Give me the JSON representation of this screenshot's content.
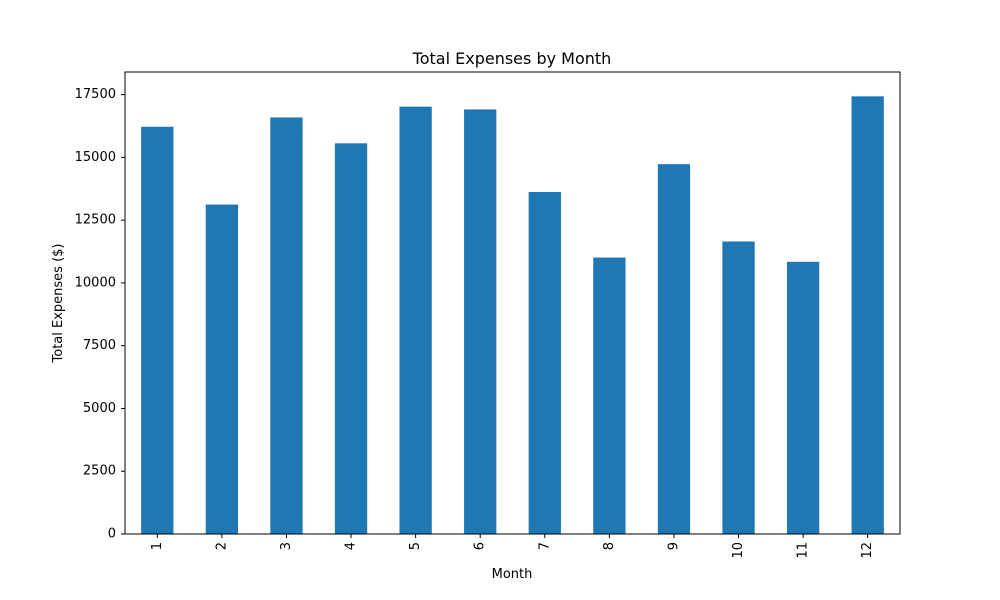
{
  "chart_data": {
    "type": "bar",
    "title": "Total Expenses by Month",
    "xlabel": "Month",
    "ylabel": "Total Expenses ($)",
    "categories": [
      "1",
      "2",
      "3",
      "4",
      "5",
      "6",
      "7",
      "8",
      "9",
      "10",
      "11",
      "12"
    ],
    "values": [
      16220,
      13120,
      16590,
      15560,
      17020,
      16910,
      13620,
      11010,
      14730,
      11650,
      10840,
      17430
    ],
    "ylim": [
      0,
      18400
    ],
    "yticks": [
      0,
      2500,
      5000,
      7500,
      10000,
      12500,
      15000,
      17500
    ],
    "ytick_labels": [
      "0",
      "2500",
      "5000",
      "7500",
      "10000",
      "12500",
      "15000",
      "17500"
    ],
    "bar_color": "#1f77b4",
    "grid": false,
    "legend": false
  }
}
